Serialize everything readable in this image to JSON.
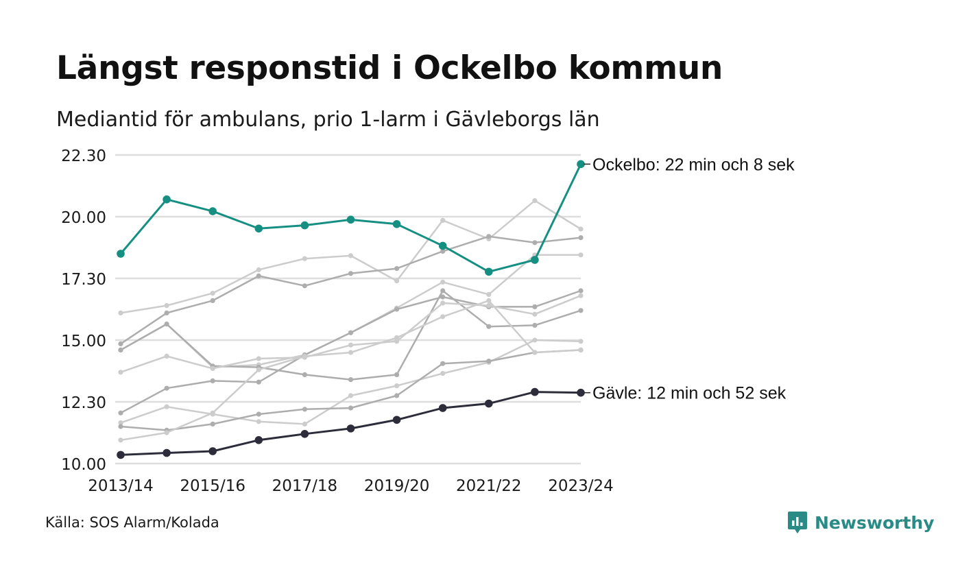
{
  "title": "Längst responstid i Ockelbo kommun",
  "subtitle": "Mediantid för ambulans, prio 1-larm i Gävleborgs län",
  "source": "Källa: SOS Alarm/Kolada",
  "brand": "Newsworthy",
  "colors": {
    "highlight": "#168f83",
    "dark": "#2c2c3a",
    "gray_light": "#cccccc",
    "gray_dark": "#adadad",
    "grid": "#dedede",
    "brand": "#2a8a85"
  },
  "icons": {
    "brand": "bar-chart-speech-icon"
  },
  "chart_data": {
    "type": "line",
    "x": [
      "2013/14",
      "2014/15",
      "2015/16",
      "2016/17",
      "2017/18",
      "2018/19",
      "2019/20",
      "2020/21",
      "2021/22",
      "2022/23",
      "2023/24"
    ],
    "x_tick_labels": [
      "2013/14",
      "2015/16",
      "2017/18",
      "2019/20",
      "2021/22",
      "2023/24"
    ],
    "y_tick_labels": [
      "10.00",
      "12.30",
      "15.00",
      "17.30",
      "20.00",
      "22.30"
    ],
    "ylim": [
      10.0,
      22.5
    ],
    "grid": true,
    "labeled_series": [
      {
        "name": "Ockelbo",
        "label": "Ockelbo: 22 min och 8 sek",
        "role": "highlight",
        "values": [
          18.5,
          20.7,
          20.22,
          19.52,
          19.65,
          19.88,
          19.7,
          18.82,
          17.77,
          18.25,
          22.13
        ]
      },
      {
        "name": "Gävle",
        "label": "Gävle: 12 min och 52 sek",
        "role": "dark",
        "values": [
          10.35,
          10.43,
          10.5,
          10.95,
          11.2,
          11.42,
          11.77,
          12.25,
          12.43,
          12.9,
          12.87
        ]
      }
    ],
    "background_series": [
      {
        "tone": "light",
        "values": [
          16.1,
          16.4,
          16.9,
          17.85,
          18.3,
          18.42,
          17.4,
          19.85,
          19.1,
          20.65,
          19.5
        ]
      },
      {
        "tone": "dark",
        "values": [
          14.85,
          16.1,
          16.6,
          17.6,
          17.2,
          17.7,
          17.9,
          18.6,
          19.2,
          18.95,
          19.15
        ]
      },
      {
        "tone": "light",
        "values": [
          14.6,
          15.65,
          13.9,
          14.0,
          14.4,
          15.3,
          16.3,
          17.35,
          16.85,
          18.45,
          18.45
        ]
      },
      {
        "tone": "dark",
        "values": [
          14.6,
          15.65,
          13.95,
          13.9,
          13.6,
          13.4,
          13.6,
          17.0,
          15.55,
          15.6,
          16.2
        ]
      },
      {
        "tone": "dark",
        "values": [
          12.05,
          13.05,
          13.35,
          13.3,
          14.4,
          15.3,
          16.25,
          16.75,
          16.35,
          16.35,
          17.0
        ]
      },
      {
        "tone": "light",
        "values": [
          13.7,
          14.35,
          13.85,
          14.25,
          14.3,
          14.8,
          14.95,
          16.5,
          16.4,
          16.05,
          16.8
        ]
      },
      {
        "tone": "light",
        "values": [
          11.65,
          12.3,
          12.0,
          11.7,
          11.6,
          12.75,
          13.15,
          13.65,
          14.1,
          15.0,
          14.95
        ]
      },
      {
        "tone": "dark",
        "values": [
          11.5,
          11.35,
          11.6,
          12.0,
          12.2,
          12.25,
          12.75,
          14.05,
          14.15,
          14.5,
          14.6
        ]
      },
      {
        "tone": "light",
        "values": [
          10.95,
          11.25,
          12.05,
          13.8,
          14.35,
          14.5,
          15.1,
          15.95,
          16.6,
          14.5,
          14.6
        ]
      }
    ]
  }
}
